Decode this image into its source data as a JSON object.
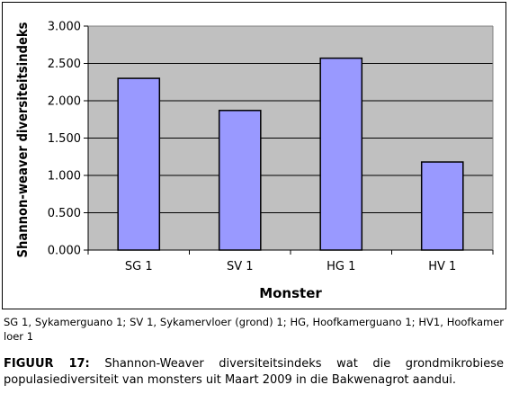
{
  "chart_data": {
    "type": "bar",
    "categories": [
      "SG 1",
      "SV 1",
      "HG 1",
      "HV 1"
    ],
    "values": [
      2.3,
      1.87,
      2.57,
      1.18
    ],
    "title": "",
    "xlabel": "Monster",
    "ylabel": "Shannon-weaver diversiteitsindeks",
    "ylim": [
      0,
      3
    ],
    "yticks": [
      "0.000",
      "0.500",
      "1.000",
      "1.500",
      "2.000",
      "2.500",
      "3.000"
    ],
    "grid": true,
    "legend": "none",
    "colors": {
      "bar": "#9999FF",
      "plot_bg": "#C0C0C0",
      "bar_edge": "#000000"
    }
  },
  "notes": {
    "legend_text": "SG 1, Sykamerguano 1; SV 1, Sykamervloer (grond) 1; HG, Hoofkamerguano 1; HV1, Hoofkamer loer 1"
  },
  "caption": {
    "label": "FIGUUR 17:",
    "text": " Shannon-Weaver diversiteitsindeks wat die grondmikrobiese populasiediversiteit van monsters uit Maart 2009 in die Bakwenagrot aandui."
  }
}
